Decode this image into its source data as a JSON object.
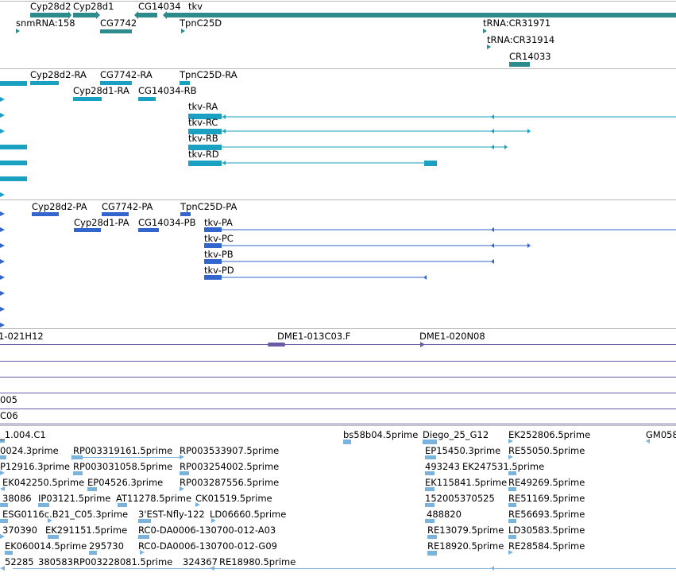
{
  "colors": {
    "gene": "#2e8b8b",
    "mrna": "#1aa0c0",
    "protein": "#3366cc",
    "clone": "#6a5aa8",
    "est": "#7ab4dc",
    "separator": "#b8b8b8"
  },
  "genes": [
    {
      "label": "Cyp28d2"
    },
    {
      "label": "Cyp28d1"
    },
    {
      "label": "CG14034"
    },
    {
      "label": "tkv"
    },
    {
      "label": "snmRNA:158"
    },
    {
      "label": "CG7742"
    },
    {
      "label": "TpnC25D"
    },
    {
      "label": "tRNA:CR31971"
    },
    {
      "label": "tRNA:CR31914"
    },
    {
      "label": "CR14033"
    }
  ],
  "transcripts": [
    {
      "label": "Cyp28d2-RA"
    },
    {
      "label": "CG7742-RA"
    },
    {
      "label": "TpnC25D-RA"
    },
    {
      "label": "Cyp28d1-RA"
    },
    {
      "label": "CG14034-RB"
    },
    {
      "label": "tkv-RA"
    },
    {
      "label": "tkv-RC"
    },
    {
      "label": "tkv-RB"
    },
    {
      "label": "tkv-RD"
    }
  ],
  "proteins": [
    {
      "label": "Cyp28d2-PA"
    },
    {
      "label": "CG7742-PA"
    },
    {
      "label": "TpnC25D-PA"
    },
    {
      "label": "Cyp28d1-PA"
    },
    {
      "label": "CG14034-PB"
    },
    {
      "label": "tkv-PA"
    },
    {
      "label": "tkv-PC"
    },
    {
      "label": "tkv-PB"
    },
    {
      "label": "tkv-PD"
    }
  ],
  "clones": [
    {
      "label": "1-021H12"
    },
    {
      "label": "DME1-013C03.F"
    },
    {
      "label": "DME1-020N08"
    },
    {
      "label": "005"
    },
    {
      "label": "C06"
    }
  ],
  "ests": [
    {
      "label": "_1.004.C1"
    },
    {
      "label": "bs58b04.5prime"
    },
    {
      "label": "Diego_25_G12"
    },
    {
      "label": "EK252806.5prime"
    },
    {
      "label": "GM058"
    },
    {
      "label": "0024.3prime"
    },
    {
      "label": "RP003319161.5prime"
    },
    {
      "label": "RP003533907.5prime"
    },
    {
      "label": "EP15450.3prime"
    },
    {
      "label": "RE55050.5prime"
    },
    {
      "label": "P12916.3prime"
    },
    {
      "label": "RP003031058.5prime"
    },
    {
      "label": "RP003254002.5prime"
    },
    {
      "label": "493243"
    },
    {
      "label": "EK247531.5prime"
    },
    {
      "label": "EK042250.5prime"
    },
    {
      "label": "EP04526.3prime"
    },
    {
      "label": "RP003287556.5prime"
    },
    {
      "label": "EK115841.5prime"
    },
    {
      "label": "RE49269.5prime"
    },
    {
      "label": "38086"
    },
    {
      "label": "IP03121.5prime"
    },
    {
      "label": "AT11278.5prime"
    },
    {
      "label": "CK01519.5prime"
    },
    {
      "label": "152005370525"
    },
    {
      "label": "RE51169.5prime"
    },
    {
      "label": "ESG0116c.B21_C05.3prime"
    },
    {
      "label": "3'EST-Nfly-122"
    },
    {
      "label": "LD06660.5prime"
    },
    {
      "label": "488820"
    },
    {
      "label": "RE56693.5prime"
    },
    {
      "label": "370390"
    },
    {
      "label": "EK291151.5prime"
    },
    {
      "label": "RC0-DA0006-130700-012-A03"
    },
    {
      "label": "RE13079.5prime"
    },
    {
      "label": "LD30583.5prime"
    },
    {
      "label": "EK060014.5prime"
    },
    {
      "label": "295730"
    },
    {
      "label": "RC0-DA0006-130700-012-G09"
    },
    {
      "label": "RE18920.5prime"
    },
    {
      "label": "RE28584.5prime"
    },
    {
      "label": "52285"
    },
    {
      "label": "380583"
    },
    {
      "label": "RP003228081.5prime"
    },
    {
      "label": "324367"
    },
    {
      "label": "RE18980.5prime"
    }
  ]
}
